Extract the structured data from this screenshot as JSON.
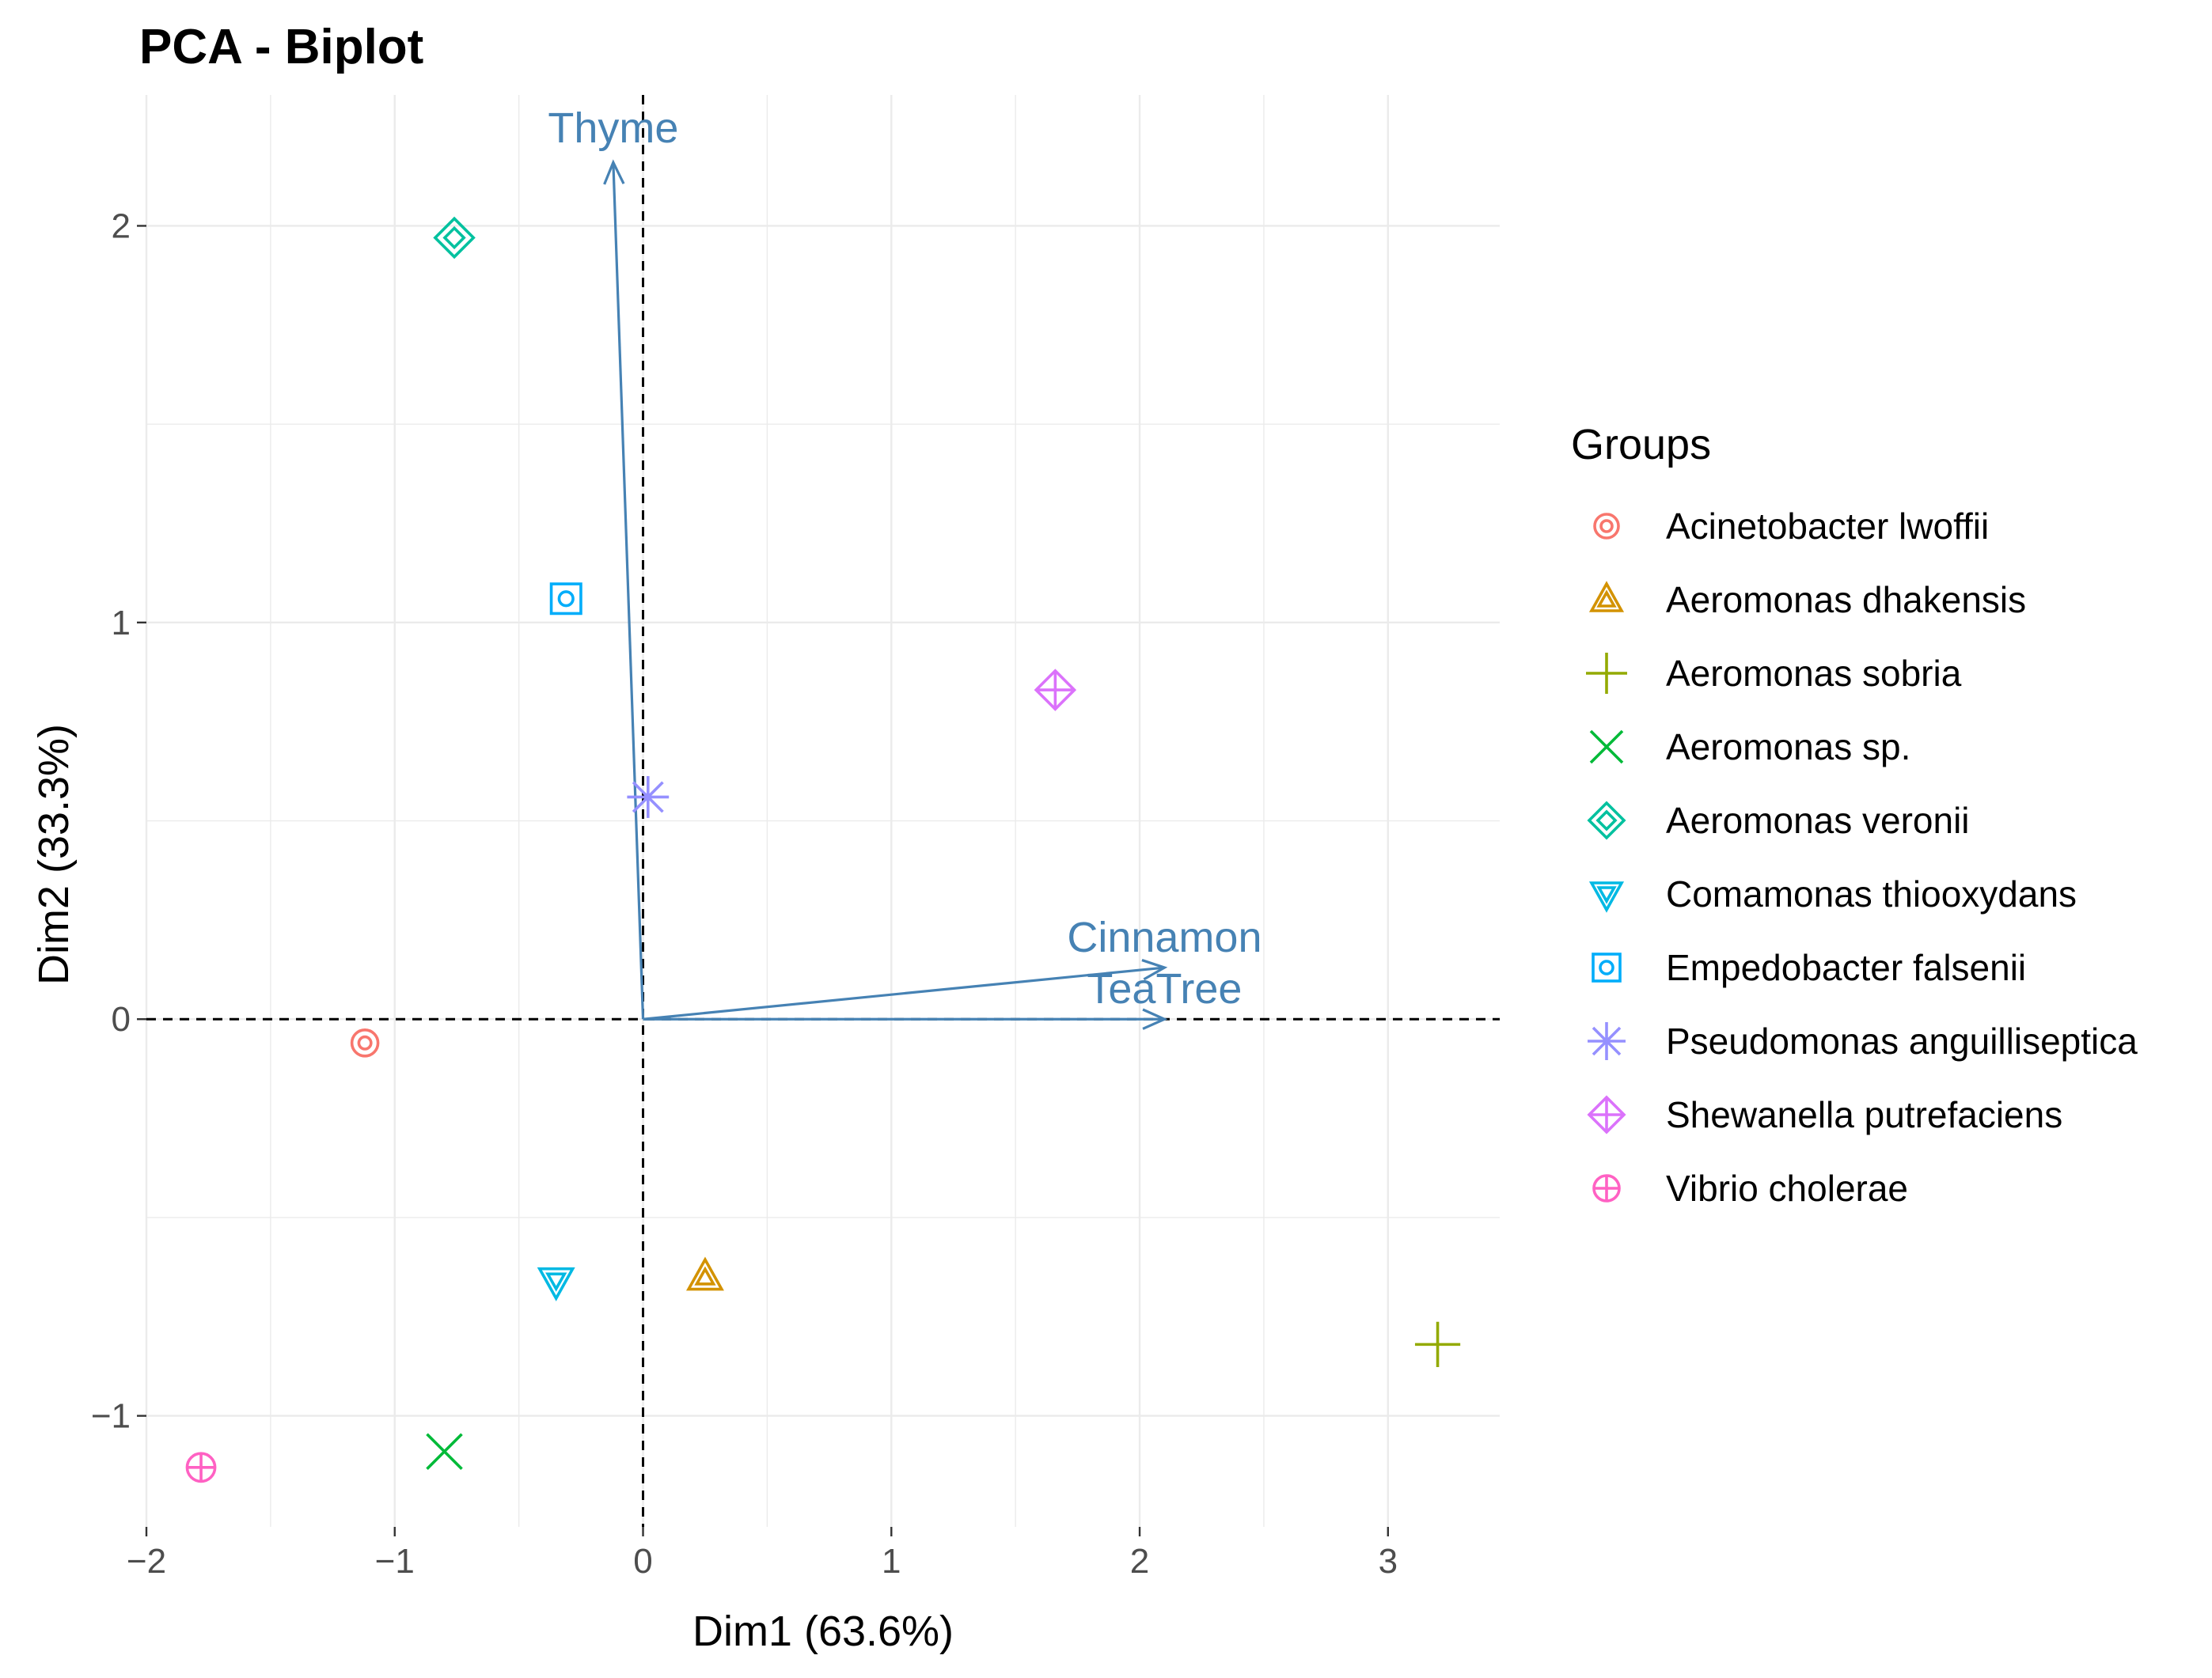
{
  "chart_data": {
    "type": "scatter",
    "title": "PCA - Biplot",
    "xlabel": "Dim1 (63.6%)",
    "ylabel": "Dim2 (33.3%)",
    "xlim": [
      -2.0,
      3.45
    ],
    "ylim": [
      -1.28,
      2.33
    ],
    "xticks": [
      -2,
      -1,
      0,
      1,
      2,
      3
    ],
    "yticks": [
      -1,
      0,
      1,
      2
    ],
    "xtick_labels": [
      "−2",
      "−1",
      "0",
      "1",
      "2",
      "3"
    ],
    "ytick_labels": [
      "−1",
      "0",
      "1",
      "2"
    ],
    "grid": true,
    "reference_lines": {
      "x": 0,
      "y": 0,
      "style": "dashed"
    },
    "legend": {
      "title": "Groups",
      "position": "right"
    },
    "series": [
      {
        "name": "Acinetobacter lwoffii",
        "color": "#F8766D",
        "marker": "circle-target",
        "points": [
          [
            -1.12,
            -0.06
          ]
        ]
      },
      {
        "name": "Aeromonas dhakensis",
        "color": "#D39200",
        "marker": "triangle-up",
        "points": [
          [
            0.25,
            -0.65
          ]
        ]
      },
      {
        "name": "Aeromonas sobria",
        "color": "#93AA00",
        "marker": "plus",
        "points": [
          [
            3.2,
            -0.82
          ]
        ]
      },
      {
        "name": "Aeromonas sp.",
        "color": "#00BA38",
        "marker": "cross",
        "points": [
          [
            -0.8,
            -1.09
          ]
        ]
      },
      {
        "name": "Aeromonas veronii",
        "color": "#00C19F",
        "marker": "diamond",
        "points": [
          [
            -0.76,
            1.97
          ]
        ]
      },
      {
        "name": "Comamonas thiooxydans",
        "color": "#00B9E3",
        "marker": "triangle-down",
        "points": [
          [
            -0.35,
            -0.66
          ]
        ]
      },
      {
        "name": "Empedobacter falsenii",
        "color": "#00ADFA",
        "marker": "square-target",
        "points": [
          [
            -0.31,
            1.06
          ]
        ]
      },
      {
        "name": "Pseudomonas anguilliseptica",
        "color": "#9590FF",
        "marker": "asterisk",
        "points": [
          [
            0.02,
            0.56
          ]
        ]
      },
      {
        "name": "Shewanella putrefaciens",
        "color": "#DB72FB",
        "marker": "diamond-plus",
        "points": [
          [
            1.66,
            0.83
          ]
        ]
      },
      {
        "name": "Vibrio cholerae",
        "color": "#FF61C3",
        "marker": "circle-plus",
        "points": [
          [
            -1.78,
            -1.13
          ]
        ]
      }
    ],
    "variables": [
      {
        "name": "Thyme",
        "x": -0.12,
        "y": 2.16
      },
      {
        "name": "Cinnamon",
        "x": 2.1,
        "y": 0.13
      },
      {
        "name": "TeaTree",
        "x": 2.1,
        "y": 0.0
      }
    ],
    "variable_color": "#4682B4"
  }
}
